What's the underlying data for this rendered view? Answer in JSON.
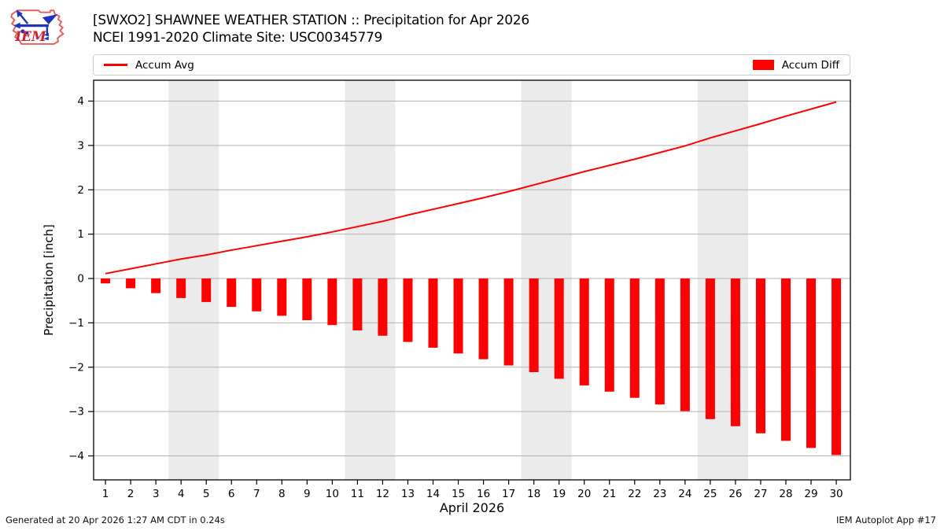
{
  "header": {
    "title": "[SWXO2] SHAWNEE WEATHER STATION :: Precipitation for Apr 2026",
    "subtitle": "NCEI 1991-2020 Climate Site: USC00345779"
  },
  "logo": {
    "text": "IEM"
  },
  "legend": {
    "avg_label": "Accum Avg",
    "diff_label": "Accum Diff"
  },
  "footer": {
    "left": "Generated at 20 Apr 2026 1:27 AM CDT in 0.24s",
    "right": "IEM Autoplot App #17"
  },
  "colors": {
    "accent_red": "#ff0000",
    "weekend_band": "#ebebeb",
    "grid": "#b3b3b3",
    "frame": "#000000",
    "logo_red": "#cc2233",
    "logo_blue": "#2233bb"
  },
  "chart_data": {
    "type": "bar",
    "x": [
      1,
      2,
      3,
      4,
      5,
      6,
      7,
      8,
      9,
      10,
      11,
      12,
      13,
      14,
      15,
      16,
      17,
      18,
      19,
      20,
      21,
      22,
      23,
      24,
      25,
      26,
      27,
      28,
      29,
      30
    ],
    "series": [
      {
        "name": "Accum Avg",
        "type": "line",
        "color": "#ff0000",
        "values": [
          0.11,
          0.22,
          0.33,
          0.44,
          0.53,
          0.64,
          0.74,
          0.84,
          0.94,
          1.05,
          1.17,
          1.29,
          1.43,
          1.56,
          1.69,
          1.82,
          1.96,
          2.11,
          2.26,
          2.41,
          2.55,
          2.69,
          2.84,
          2.99,
          3.17,
          3.33,
          3.49,
          3.66,
          3.82,
          3.98
        ]
      },
      {
        "name": "Accum Diff",
        "type": "bar",
        "color": "#ff0000",
        "values": [
          -0.11,
          -0.22,
          -0.33,
          -0.44,
          -0.53,
          -0.64,
          -0.74,
          -0.84,
          -0.94,
          -1.05,
          -1.17,
          -1.29,
          -1.43,
          -1.56,
          -1.69,
          -1.82,
          -1.96,
          -2.11,
          -2.26,
          -2.41,
          -2.55,
          -2.69,
          -2.84,
          -2.99,
          -3.17,
          -3.33,
          -3.49,
          -3.66,
          -3.82,
          -3.98
        ]
      }
    ],
    "title": "[SWXO2] SHAWNEE WEATHER STATION :: Precipitation for Apr 2026",
    "xlabel": "April 2026",
    "ylabel": "Precipitation [inch]",
    "yticks": [
      4,
      3,
      2,
      1,
      0,
      -1,
      -2,
      -3,
      -4
    ],
    "ylim": [
      -4.54,
      4.47
    ],
    "xlim": [
      0.53,
      30.56
    ],
    "weekend_bands": [
      [
        3.5,
        5.5
      ],
      [
        10.5,
        12.5
      ],
      [
        17.5,
        19.5
      ],
      [
        24.5,
        26.5
      ]
    ],
    "grid": true,
    "legend_position": "top"
  }
}
